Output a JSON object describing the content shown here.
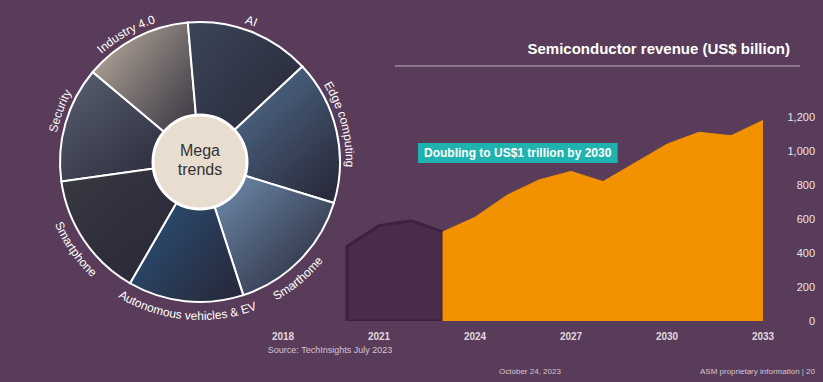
{
  "chart_data": {
    "type": "area",
    "title": "Semiconductor revenue (US$ billion)",
    "annotations": [
      "Doubling to US$1 trillion by 2030"
    ],
    "center_label": "Mega trends",
    "trends": [
      "Security",
      "Industry 4.0",
      "AI",
      "Edge computing",
      "Smarthome",
      "Autonomous vehicles & EV",
      "Smartphone"
    ],
    "source": "Source: TechInsights July 2023",
    "footer": [
      "October 24, 2023",
      "ASM proprietary information | 20"
    ],
    "series": [
      {
        "color": "#3e2140",
        "x": [
          2020,
          2021,
          2022,
          2023
        ],
        "values": [
          440,
          560,
          590,
          525
        ]
      },
      {
        "color": "#f39200",
        "x": [
          2023,
          2024,
          2025,
          2026,
          2027,
          2028,
          2029,
          2030,
          2031,
          2032,
          2033
        ],
        "values": [
          525,
          610,
          740,
          830,
          880,
          820,
          930,
          1040,
          1110,
          1090,
          1180
        ]
      }
    ],
    "xlim": [
      2018,
      2033
    ],
    "xticks": [
      2018,
      2021,
      2024,
      2027,
      2030,
      2033
    ],
    "ylim": [
      0,
      1200
    ],
    "yticks": [
      0,
      200,
      400,
      600,
      800,
      {
        "value": 1000,
        "label": "1,000"
      },
      {
        "value": 1200,
        "label": "1,200"
      }
    ],
    "grid": false
  }
}
